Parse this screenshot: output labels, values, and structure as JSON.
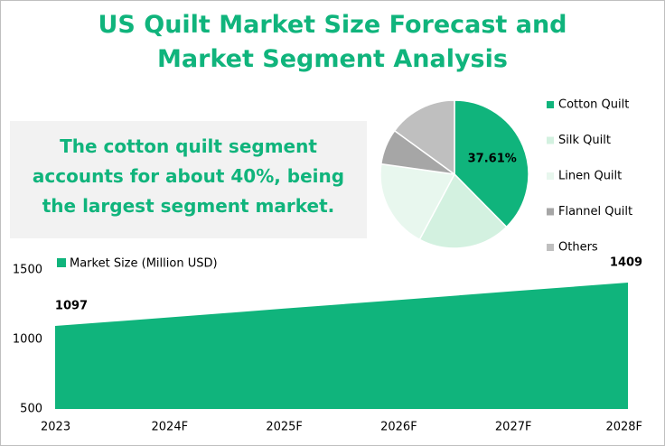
{
  "title": "US Quilt Market Size Forecast and Market Segment Analysis",
  "annotation": "The cotton quilt segment accounts for about 40%, being the largest segment market.",
  "chart_data": [
    {
      "type": "area",
      "categories": [
        "2023",
        "2024F",
        "2025F",
        "2026F",
        "2027F",
        "2028F"
      ],
      "series": [
        {
          "name": "Market Size (Million USD)",
          "color": "#10b47c",
          "values": [
            1097,
            1159,
            1222,
            1284,
            1347,
            1409
          ],
          "value_labels": [
            "1097",
            null,
            null,
            null,
            null,
            "1409"
          ]
        }
      ],
      "ylim": [
        500,
        1500
      ],
      "yticks": [
        500,
        1000,
        1500
      ],
      "grid": false,
      "legend": "top-left"
    },
    {
      "type": "pie",
      "categories": [
        "Cotton Quilt",
        "Silk Quilt",
        "Linen Quilt",
        "Flannel Quilt",
        "Others"
      ],
      "values": [
        37.61,
        20.2,
        19.4,
        7.8,
        14.99
      ],
      "value_labels": [
        "37.61%",
        null,
        null,
        null,
        null
      ],
      "colors": [
        "#10b47c",
        "#d3f1e0",
        "#e8f7ee",
        "#a6a6a6",
        "#bfbfbf"
      ],
      "legend": "right"
    }
  ]
}
